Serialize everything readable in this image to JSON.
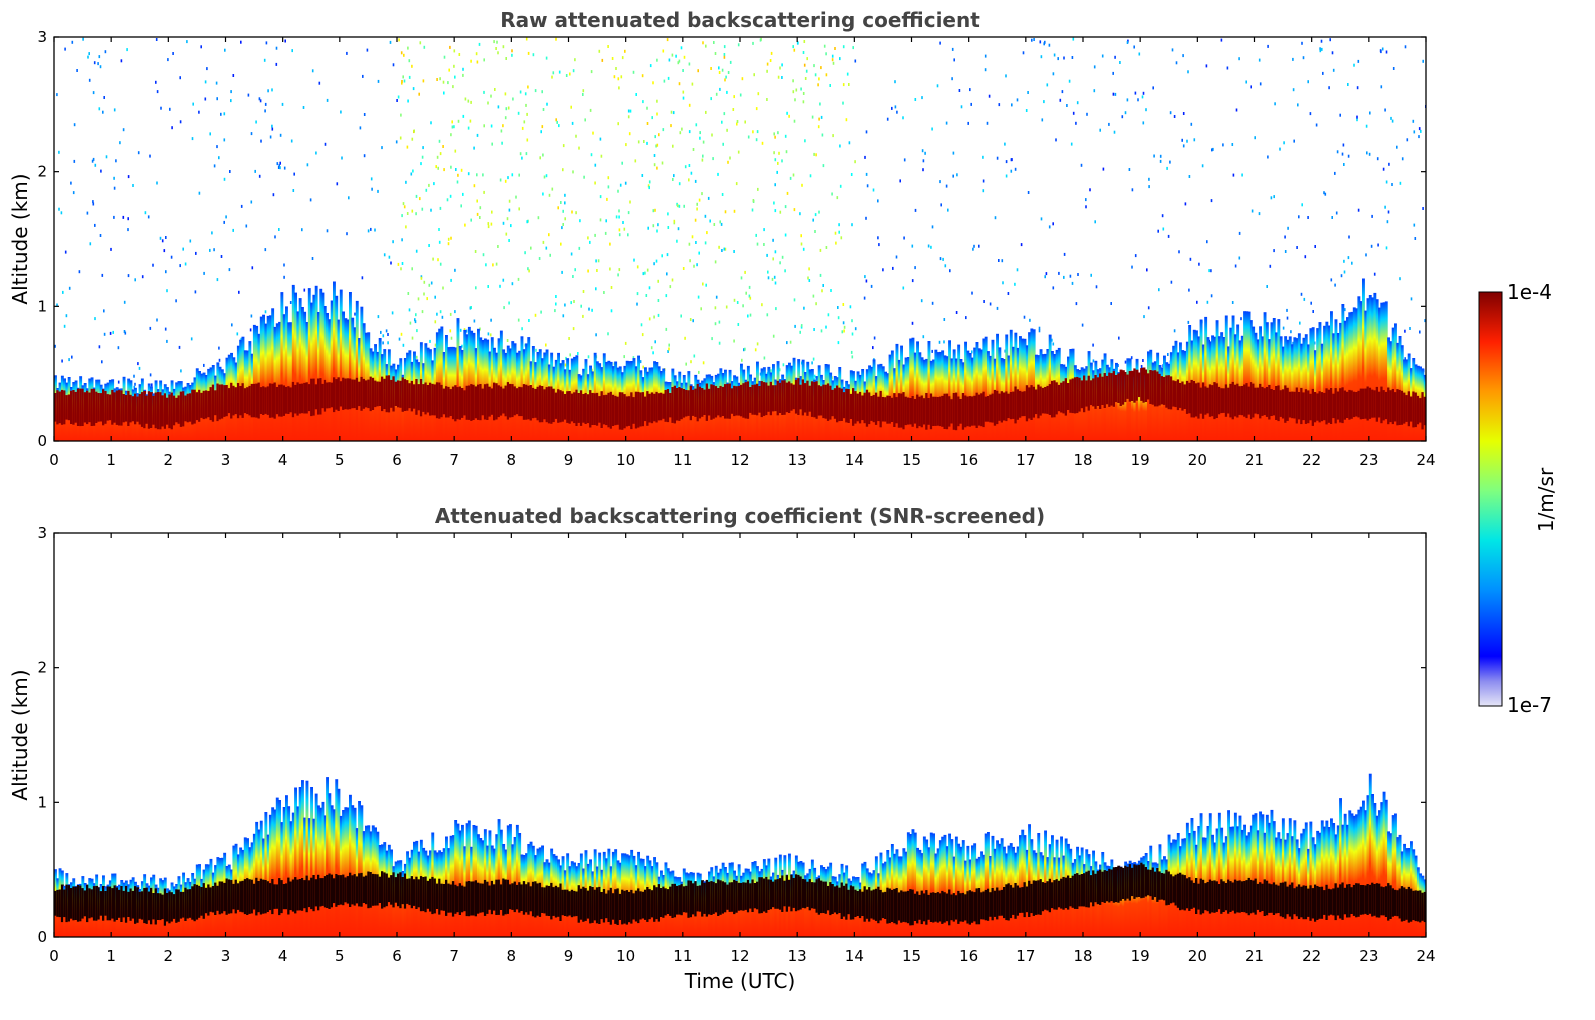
{
  "chart_data": [
    {
      "type": "heatmap",
      "title": "Raw attenuated backscattering coefficient",
      "xlabel": "",
      "ylabel": "Altitude (km)",
      "xlim": [
        0,
        24
      ],
      "ylim": [
        0,
        3
      ],
      "xticks": [
        "0",
        "1",
        "2",
        "3",
        "4",
        "5",
        "6",
        "7",
        "8",
        "9",
        "10",
        "11",
        "12",
        "13",
        "14",
        "15",
        "16",
        "17",
        "18",
        "19",
        "20",
        "21",
        "22",
        "23",
        "24"
      ],
      "yticks": [
        "0",
        "1",
        "2",
        "3"
      ],
      "snr_screened": false,
      "layers": {
        "time_utc": [
          0,
          1,
          2,
          3,
          4,
          5,
          6,
          7,
          8,
          9,
          10,
          11,
          12,
          13,
          14,
          15,
          16,
          17,
          18,
          19,
          20,
          21,
          22,
          23,
          24
        ],
        "boundary_layer_top_km": [
          0.45,
          0.42,
          0.4,
          0.55,
          1.0,
          1.05,
          0.55,
          0.8,
          0.75,
          0.55,
          0.6,
          0.45,
          0.5,
          0.55,
          0.45,
          0.7,
          0.65,
          0.75,
          0.6,
          0.55,
          0.8,
          0.85,
          0.75,
          1.1,
          0.45
        ],
        "dense_layer_center_km": [
          0.25,
          0.25,
          0.22,
          0.3,
          0.3,
          0.35,
          0.35,
          0.28,
          0.3,
          0.25,
          0.22,
          0.28,
          0.3,
          0.33,
          0.25,
          0.22,
          0.22,
          0.28,
          0.35,
          0.42,
          0.3,
          0.3,
          0.25,
          0.28,
          0.22
        ]
      },
      "noise_region": {
        "from_time": 6,
        "to_time": 14,
        "max_altitude_km": 3
      }
    },
    {
      "type": "heatmap",
      "title": "Attenuated backscattering coefficient (SNR-screened)",
      "xlabel": "Time (UTC)",
      "ylabel": "Altitude (km)",
      "xlim": [
        0,
        24
      ],
      "ylim": [
        0,
        3
      ],
      "xticks": [
        "0",
        "1",
        "2",
        "3",
        "4",
        "5",
        "6",
        "7",
        "8",
        "9",
        "10",
        "11",
        "12",
        "13",
        "14",
        "15",
        "16",
        "17",
        "18",
        "19",
        "20",
        "21",
        "22",
        "23",
        "24"
      ],
      "yticks": [
        "0",
        "1",
        "2",
        "3"
      ],
      "snr_screened": true
    }
  ],
  "colorbar": {
    "label": "1/m/sr",
    "max_label": "1e-4",
    "min_label": "1e-7",
    "scale": "log",
    "colormap": "jet",
    "min_value": 1e-07,
    "max_value": 0.0001
  }
}
